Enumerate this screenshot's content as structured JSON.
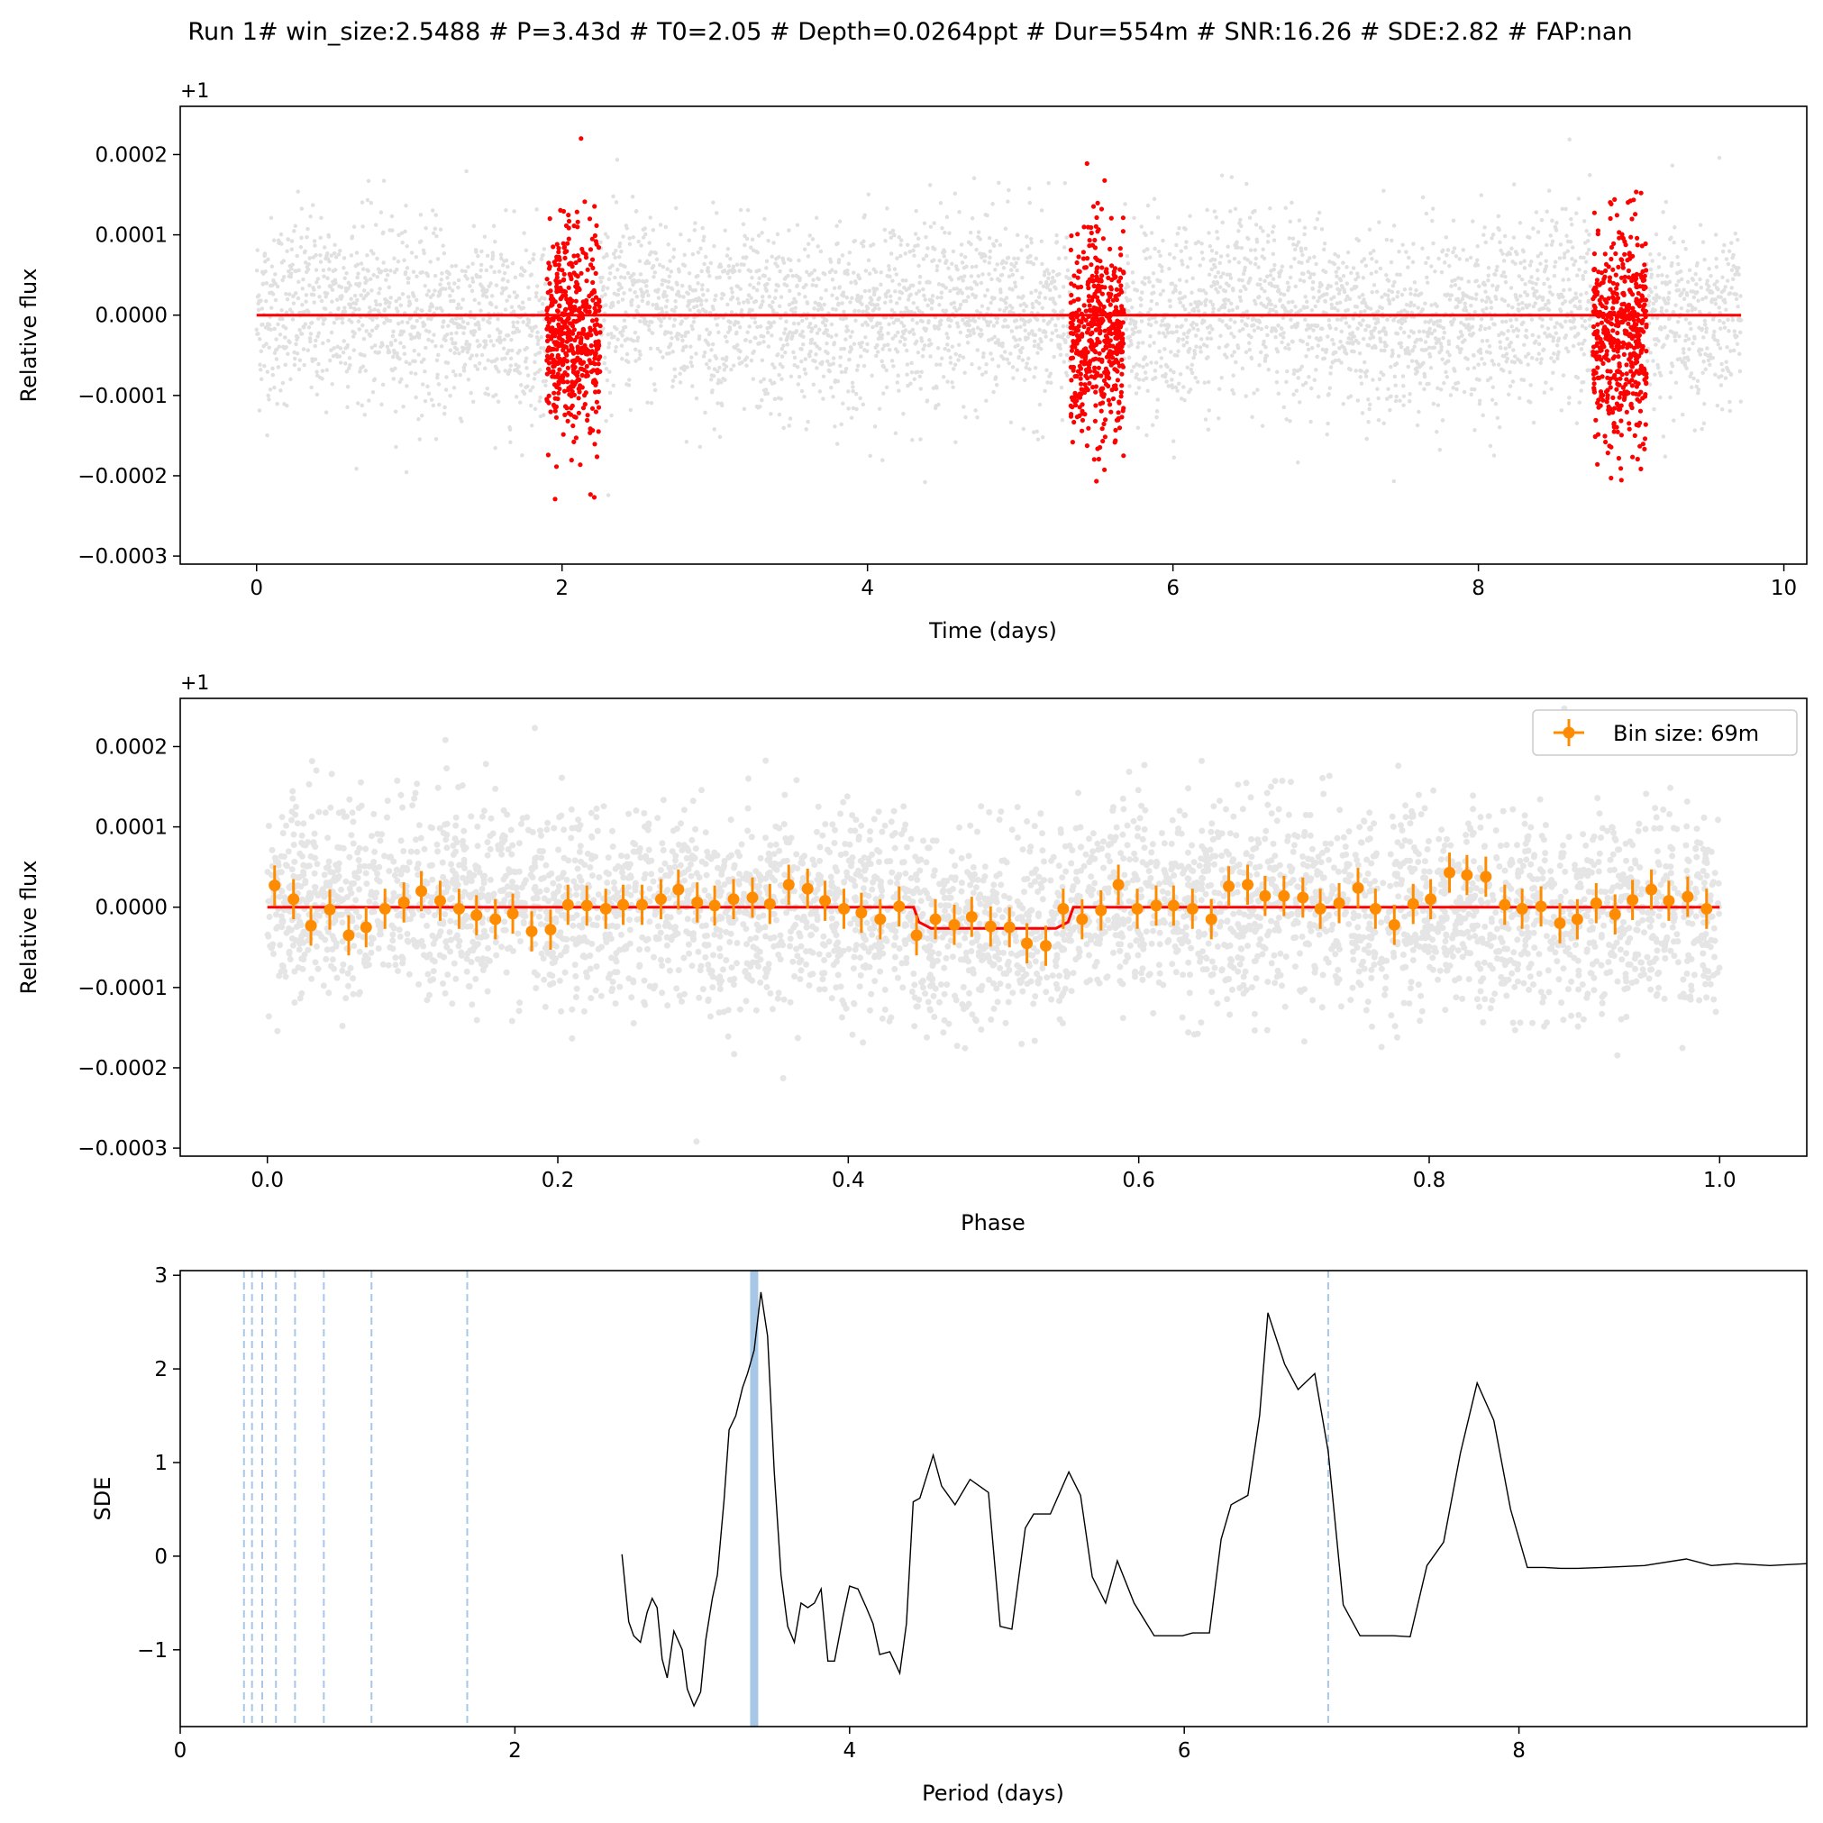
{
  "figure": {
    "title": "Run 1# win_size:2.5488 # P=3.43d # T0=2.05 # Depth=0.0264ppt # Dur=554m # SNR:16.26 # SDE:2.82 # FAP:nan"
  },
  "colors": {
    "model": "#ff0000",
    "in_transit": "#ff0000",
    "raw_points": "#000000",
    "binned": "#ff8c00",
    "periodogram": "#000000",
    "period_marker": "#a7c7e7"
  },
  "chart_data": [
    {
      "type": "scatter",
      "name": "light-curve",
      "xlabel": "Time (days)",
      "ylabel": "Relative flux",
      "offset_label": "+1",
      "xlim": [
        -0.5,
        10.15
      ],
      "ylim": [
        -0.00031,
        0.00026
      ],
      "xticks": [
        0,
        2,
        4,
        6,
        8,
        10
      ],
      "xtick_labels": [
        "0",
        "2",
        "4",
        "6",
        "8",
        "10"
      ],
      "yticks": [
        -0.0003,
        -0.0002,
        -0.0001,
        0.0,
        0.0001,
        0.0002
      ],
      "ytick_labels": [
        "−0.0003",
        "−0.0002",
        "−0.0001",
        "0.0000",
        "0.0001",
        "0.0002"
      ],
      "time_range": [
        0.0,
        9.72
      ],
      "scatter_std": 5.8e-05,
      "transit_windows": [
        [
          1.9,
          2.25
        ],
        [
          5.33,
          5.68
        ],
        [
          8.75,
          9.1
        ]
      ],
      "model_line": {
        "x": [
          0.0,
          9.72
        ],
        "y": [
          0.0,
          0.0
        ]
      }
    },
    {
      "type": "scatter",
      "name": "phase-folded",
      "xlabel": "Phase",
      "ylabel": "Relative flux",
      "offset_label": "+1",
      "legend": {
        "entries": [
          "Bin size: 69m"
        ],
        "position": "upper-right"
      },
      "xlim": [
        -0.06,
        1.06
      ],
      "ylim": [
        -0.00031,
        0.00026
      ],
      "xticks": [
        0.0,
        0.2,
        0.4,
        0.6,
        0.8,
        1.0
      ],
      "xtick_labels": [
        "0.0",
        "0.2",
        "0.4",
        "0.6",
        "0.8",
        "1.0"
      ],
      "yticks": [
        -0.0003,
        -0.0002,
        -0.0001,
        0.0,
        0.0001,
        0.0002
      ],
      "ytick_labels": [
        "−0.0003",
        "−0.0002",
        "−0.0001",
        "0.0000",
        "0.0001",
        "0.0002"
      ],
      "model": {
        "transit_start": 0.445,
        "transit_end": 0.555,
        "depth": 2.64e-05
      },
      "binned": {
        "x": [
          0.005,
          0.018,
          0.03,
          0.043,
          0.056,
          0.068,
          0.081,
          0.094,
          0.106,
          0.119,
          0.132,
          0.144,
          0.157,
          0.169,
          0.182,
          0.195,
          0.207,
          0.22,
          0.233,
          0.245,
          0.258,
          0.271,
          0.283,
          0.296,
          0.308,
          0.321,
          0.334,
          0.346,
          0.359,
          0.372,
          0.384,
          0.397,
          0.409,
          0.422,
          0.435,
          0.447,
          0.46,
          0.473,
          0.485,
          0.498,
          0.511,
          0.523,
          0.536,
          0.548,
          0.561,
          0.574,
          0.586,
          0.599,
          0.612,
          0.624,
          0.637,
          0.65,
          0.662,
          0.675,
          0.687,
          0.7,
          0.713,
          0.725,
          0.738,
          0.751,
          0.763,
          0.776,
          0.789,
          0.801,
          0.814,
          0.826,
          0.839,
          0.852,
          0.864,
          0.877,
          0.89,
          0.902,
          0.915,
          0.928,
          0.94,
          0.953,
          0.965,
          0.978,
          0.991
        ],
        "y": [
          2.7e-05,
          1e-05,
          -2.3e-05,
          -3e-06,
          -3.5e-05,
          -2.5e-05,
          -2e-06,
          6e-06,
          2e-05,
          8e-06,
          -2e-06,
          -1e-05,
          -1.5e-05,
          -8e-06,
          -3e-05,
          -2.8e-05,
          3e-06,
          2e-06,
          -2e-06,
          3e-06,
          3e-06,
          1e-05,
          2.2e-05,
          6e-06,
          2e-06,
          1e-05,
          1.2e-05,
          4e-06,
          2.8e-05,
          2.3e-05,
          8e-06,
          -2e-06,
          -7e-06,
          -1.5e-05,
          1e-06,
          -3.5e-05,
          -1.5e-05,
          -2.2e-05,
          -1.2e-05,
          -2.4e-05,
          -2.5e-05,
          -4.5e-05,
          -4.8e-05,
          -2e-06,
          -1.5e-05,
          -4e-06,
          2.8e-05,
          -2e-06,
          2e-06,
          2e-06,
          -2e-06,
          -1.5e-05,
          2.6e-05,
          2.8e-05,
          1.4e-05,
          1.4e-05,
          1.2e-05,
          -2e-06,
          5e-06,
          2.4e-05,
          -2e-06,
          -2.2e-05,
          4e-06,
          1e-05,
          4.3e-05,
          4e-05,
          3.8e-05,
          3e-06,
          -2e-06,
          1e-06,
          -2e-05,
          -1.5e-05,
          5e-06,
          -9e-06,
          9e-06,
          2.2e-05,
          8e-06,
          1.3e-05,
          -2e-06
        ],
        "yerr": 2.5e-05
      }
    },
    {
      "type": "line",
      "name": "periodogram",
      "xlabel": "Period (days)",
      "ylabel": "SDE",
      "xlim": [
        0.0,
        9.72
      ],
      "ylim": [
        -1.82,
        3.05
      ],
      "xticks": [
        0,
        2,
        4,
        6,
        8
      ],
      "xtick_labels": [
        "0",
        "2",
        "4",
        "6",
        "8"
      ],
      "yticks": [
        -1,
        0,
        1,
        2,
        3
      ],
      "ytick_labels": [
        "−1",
        "0",
        "1",
        "2",
        "3"
      ],
      "best_period": 3.43,
      "harmonic_periods": [
        0.381,
        0.429,
        0.49,
        0.572,
        0.686,
        0.858,
        1.143,
        1.715,
        6.86
      ],
      "x": [
        2.64,
        2.68,
        2.71,
        2.75,
        2.79,
        2.82,
        2.85,
        2.88,
        2.91,
        2.95,
        3.0,
        3.03,
        3.07,
        3.11,
        3.14,
        3.18,
        3.21,
        3.25,
        3.28,
        3.32,
        3.36,
        3.39,
        3.43,
        3.47,
        3.51,
        3.55,
        3.59,
        3.63,
        3.67,
        3.71,
        3.75,
        3.79,
        3.83,
        3.87,
        3.91,
        3.96,
        4.0,
        4.05,
        4.1,
        4.14,
        4.18,
        4.24,
        4.3,
        4.34,
        4.38,
        4.42,
        4.5,
        4.55,
        4.63,
        4.72,
        4.83,
        4.9,
        4.97,
        5.05,
        5.1,
        5.2,
        5.31,
        5.38,
        5.45,
        5.53,
        5.6,
        5.7,
        5.82,
        5.9,
        5.99,
        6.05,
        6.15,
        6.22,
        6.28,
        6.38,
        6.45,
        6.5,
        6.6,
        6.68,
        6.78,
        6.86,
        6.95,
        7.05,
        7.15,
        7.25,
        7.35,
        7.45,
        7.55,
        7.65,
        7.75,
        7.85,
        7.95,
        8.05,
        8.15,
        8.25,
        8.35,
        8.5,
        8.75,
        9.0,
        9.15,
        9.3,
        9.5,
        9.72
      ],
      "y": [
        0.02,
        -0.7,
        -0.85,
        -0.92,
        -0.6,
        -0.45,
        -0.55,
        -1.1,
        -1.3,
        -0.8,
        -1.0,
        -1.42,
        -1.6,
        -1.45,
        -0.9,
        -0.45,
        -0.2,
        0.6,
        1.35,
        1.5,
        1.8,
        1.95,
        2.2,
        2.82,
        2.35,
        0.9,
        -0.2,
        -0.75,
        -0.92,
        -0.5,
        -0.55,
        -0.5,
        -0.35,
        -1.12,
        -1.12,
        -0.65,
        -0.32,
        -0.35,
        -0.55,
        -0.72,
        -1.05,
        -1.02,
        -1.25,
        -0.72,
        0.58,
        0.62,
        1.08,
        0.75,
        0.55,
        0.82,
        0.68,
        -0.75,
        -0.78,
        0.3,
        0.45,
        0.45,
        0.9,
        0.65,
        -0.22,
        -0.5,
        -0.05,
        -0.5,
        -0.85,
        -0.85,
        -0.85,
        -0.82,
        -0.82,
        0.18,
        0.55,
        0.65,
        1.5,
        2.6,
        2.05,
        1.78,
        1.95,
        1.12,
        -0.52,
        -0.85,
        -0.85,
        -0.85,
        -0.86,
        -0.1,
        0.15,
        1.1,
        1.85,
        1.45,
        0.5,
        -0.12,
        -0.12,
        -0.13,
        -0.13,
        -0.12,
        -0.1,
        -0.03,
        -0.1,
        -0.08,
        -0.1,
        -0.08
      ]
    }
  ]
}
